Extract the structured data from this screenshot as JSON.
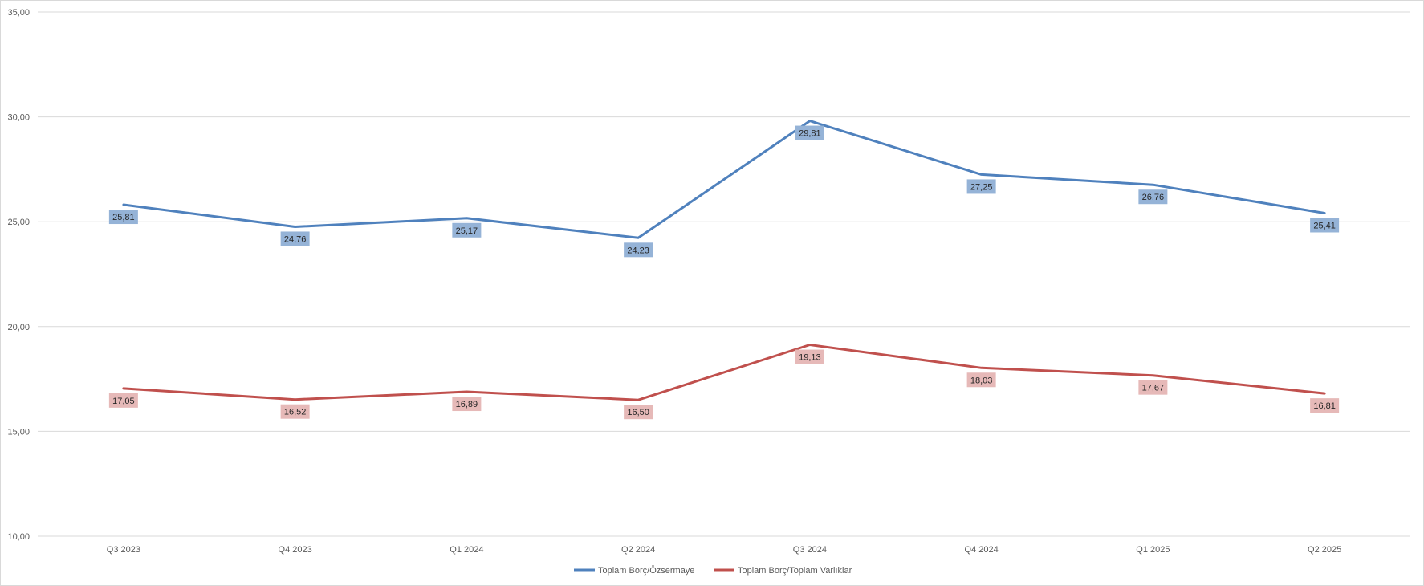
{
  "chart_data": {
    "type": "line",
    "categories": [
      "Q3 2023",
      "Q4 2023",
      "Q1 2024",
      "Q2 2024",
      "Q3 2024",
      "Q4 2024",
      "Q1 2025",
      "Q2 2025"
    ],
    "series": [
      {
        "name": "Toplam Borç/Özsermaye",
        "values": [
          25.81,
          24.76,
          25.17,
          24.23,
          29.81,
          27.25,
          26.76,
          25.41
        ],
        "labels": [
          "25,81",
          "24,76",
          "25,17",
          "24,23",
          "29,81",
          "27,25",
          "26,76",
          "25,41"
        ],
        "color": "#4f81bd",
        "label_color": "#95b3d7"
      },
      {
        "name": "Toplam Borç/Toplam Varlıklar",
        "values": [
          17.05,
          16.52,
          16.89,
          16.5,
          19.13,
          18.03,
          17.67,
          16.81
        ],
        "labels": [
          "17,05",
          "16,52",
          "16,89",
          "16,50",
          "19,13",
          "18,03",
          "17,67",
          "16,81"
        ],
        "color": "#c0504d",
        "label_color": "#e6b9b8"
      }
    ],
    "ylim": [
      10,
      35
    ],
    "yticks": [
      10,
      15,
      20,
      25,
      30,
      35
    ],
    "ytick_labels": [
      "10,00",
      "15,00",
      "20,00",
      "25,00",
      "30,00",
      "35,00"
    ],
    "title": "",
    "xlabel": "",
    "ylabel": "",
    "grid": true,
    "legend_position": "bottom"
  }
}
